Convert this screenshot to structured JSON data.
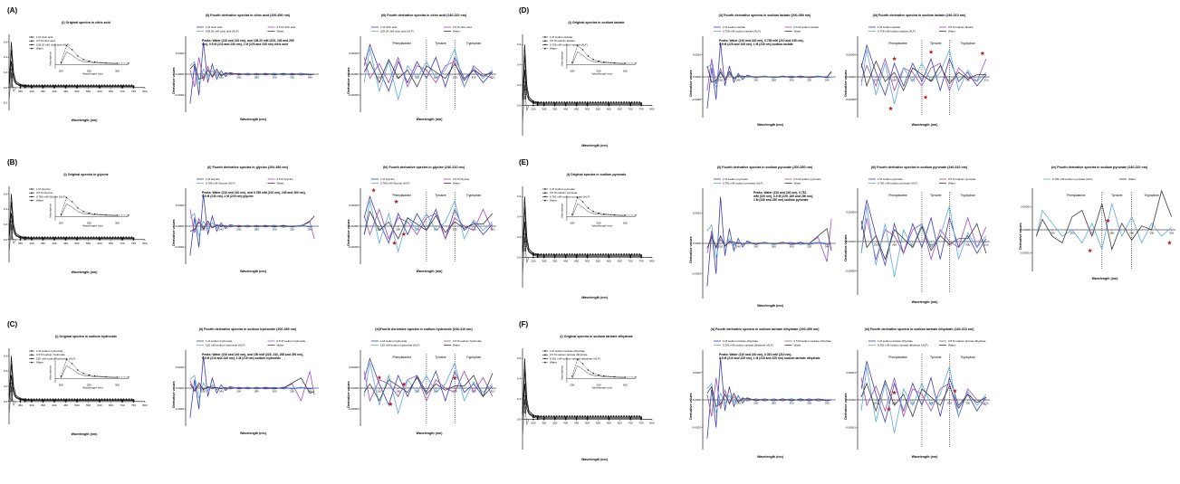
{
  "panels": [
    {
      "letter": "(A)",
      "solute": "citric acid",
      "legend": [
        "1 M citric acid",
        "0.5 M citric acid",
        "108.20 mM citric acid (ALF)",
        "Water"
      ],
      "s1_title": "(i) Original spectra in citric acid",
      "s2_title": "(ii) Fourth derivative spectra in citric acid  (200-350 nm)",
      "s3_title": "(iii) Fourth derivative spectra in citric acid  (240-310 nm)",
      "peaks": [
        "Peaks: Water (210 and 240 nm), and 108.20 mM (225, 245 and 295",
        "nm), 0.5 M (210 and 230 nm), 1 M (220 and 235 nm) citric acid"
      ],
      "stars": [],
      "has_s4": false
    },
    {
      "letter": "(B)",
      "solute": "glycine",
      "legend": [
        "1 M Glycine",
        "0.5 M Glycine",
        "0.785 mM Glycine (ALF)",
        "Water"
      ],
      "s1_title": "(i) Original spectra in glycine",
      "s2_title": "(ii) Fourth derivative spectra in glycine  (200-350 nm)",
      "s3_title": "(iii) Fourth derivative spectra in glycine  (240-310 nm)",
      "peaks": [
        "Peaks: Water (210 and 240 nm), and 0.785 mM (210 nm), 245 and 260 nm),",
        "0.5 M (230 nm), 1 M (220 nm) glycine"
      ],
      "stars": [
        [
          259,
          5.8e-05
        ],
        [
          247,
          8.5e-05
        ],
        [
          263,
          -1.9e-05
        ],
        [
          258,
          -4e-05
        ]
      ],
      "has_s4": false
    },
    {
      "letter": "(C)",
      "solute": "sodium hydroxide",
      "legend": [
        "1 M sodium hydroxide",
        "0.5 M sodium hydroxide",
        "150 mM sodium hydroxide (ALF)",
        "Water"
      ],
      "s1_title": "(i) Original spectra in sodium hydroxide",
      "s2_title": "(ii) Fourth derivative spectra in sodium hydroxide  (200-350 nm)",
      "s3_title": "(iii)Fourth derivative spectra in sodium hydroxide  (240-310 nm)",
      "peaks": [
        "Peaks: Water (210 and 240 nm), and 150 mM (225, 240, 265 and 290 nm),",
        "0.5 M (210 and 240 nm), 1 M (215 nm) sodium hydroxide"
      ],
      "stars": [
        [
          250,
          2.5e-05
        ],
        [
          263,
          9e-06
        ],
        [
          256,
          -3.8e-05
        ],
        [
          290,
          2.4e-05
        ]
      ],
      "has_s4": false
    },
    {
      "letter": "(D)",
      "solute": "sodium lactate",
      "legend": [
        "1 M sodium lactate",
        "0.5 M sodium lactate",
        "0.758 mM sodium lactate (ALF)",
        "Water"
      ],
      "s1_title": "(i) Original spectra in sodium lactate",
      "s2_title": "(ii) Fourth derivative spectra in sodium lactate  (200-350 nm)",
      "s3_title": "(iii) Fourth derivative spectra in sodium lactate  (240-310 nm)",
      "peaks": [
        "Peaks: Water (210 and 240 nm), 0.758 mM (210 and 245 nm),",
        "0.5 M (225 and 245 nm), 1 M (230 nm) sodium lactate"
      ],
      "stars": [
        [
          260,
          4e-05
        ],
        [
          258,
          -7e-05
        ],
        [
          280,
          5.5e-05
        ],
        [
          277,
          -4.5e-05
        ],
        [
          308,
          5.2e-05
        ]
      ],
      "has_s4": false
    },
    {
      "letter": "(E)",
      "solute": "sodium pyruvate",
      "legend": [
        "1 M sodium pyruvate",
        "0.5 M sodium pyruvate",
        "0.781 mM sodium pyruvate (ALF)",
        "Water"
      ],
      "s1_title": "(i) Original spectra in sodium pyruvate",
      "s2_title": "(ii) Fourth derivative spectra in sodium pyruvate  (200-350 nm)",
      "s3_title": "(iii) Fourth derivative spectra in sodium pyruvate  (240-310 nm)",
      "s4_title": "(iv) Fourth derivative spectra in sodium pyruvate  (240-310 nm)",
      "peaks": [
        "Peaks: Water (210 and 240 nm), 0.781",
        "mM (210 nm), 0.5 M (225, 240 and 250 nm),",
        "1 M (240 and 250 nm) sodium pyruvate"
      ],
      "stars": [],
      "s4_stars": [
        [
          278,
          7e-06
        ],
        [
          269,
          -1.6e-05
        ],
        [
          309,
          -1e-05
        ]
      ],
      "has_s4": true,
      "s4_legend": [
        "0.781 mM sodium pyruvate (ALF)",
        "Water"
      ]
    },
    {
      "letter": "(F)",
      "solute": "sodium tartrate dihydrate",
      "legend": [
        "1 M sodium tartrate dihydrate",
        "0.5 M sodium tartrate dihydrate",
        "0.391 mM sodium tartrate dihydrate (ALF)",
        "Water"
      ],
      "s1_title": "(i) Original spectra in sodium tartrate dihydrate",
      "s2_title": "(ii) Fourth derivative spectra in sodium tartrate dihydrate  (200-350 nm)",
      "s3_title": "(iii) Fourth derivative spectra in sodium tartrate dihydrate  (240-310 nm)",
      "peaks": [
        "Peaks: Water (210 and 240 nm), 0.391 mM (210 nm),",
        "0.5 M (210 and 225 nm), 1 M (215 and 225 nm) sodium tartrate dihydrate"
      ],
      "stars": [
        [
          260,
          1.3e-05
        ],
        [
          257,
          -1.7e-05
        ],
        [
          293,
          1.6e-05
        ]
      ],
      "has_s4": false
    }
  ],
  "labels": {
    "absorbance": "Absorbance",
    "wavelength_nm": "Wavelength (nm)",
    "derivative": "Derivative values",
    "wavelength_inset": "Wavelength (nm)",
    "absorbance_inset": "Absorbance",
    "regions": [
      "Phenylalanine",
      "Tyrosine",
      "Tryptophan"
    ]
  },
  "ticks": {
    "s1_x": [
      "250",
      "300",
      "350",
      "400",
      "450",
      "500",
      "550",
      "600",
      "650",
      "700",
      "750",
      "800"
    ],
    "s1_y": [
      "0.0",
      "0.2",
      "0.4",
      "0.6"
    ],
    "s1_y_neg": [
      "-0.2"
    ],
    "inset_x": [
      "200",
      "250",
      "300"
    ],
    "s2_x": [
      "220",
      "240",
      "260",
      "280",
      "300",
      "320",
      "340"
    ],
    "s2_y": [
      "0.0020",
      "0.0000",
      "-0.0020"
    ],
    "s2_y_alt": [
      "0.0002",
      "0.0000",
      "-0.0002"
    ],
    "s3_x": [
      "250",
      "260",
      "270",
      "280",
      "290",
      "300",
      "310"
    ],
    "s3_y": [
      "0.00005",
      "0.00000",
      "-0.00005"
    ],
    "s3_y_alt": [
      "0.00001",
      "0.00000",
      "-0.00001"
    ]
  },
  "chart_data": [
    {
      "type": "line",
      "panel": "A-E-F (i)",
      "x_range": [
        200,
        800
      ],
      "ylim": [
        -0.3,
        0.7
      ],
      "ylabel": "Absorbance",
      "xlabel": "Wavelength (nm)",
      "series": [
        {
          "name": "1 M",
          "x": [
            200,
            205,
            210,
            215,
            220,
            230,
            250,
            270,
            300,
            350,
            400,
            450,
            500,
            600,
            700,
            750
          ],
          "values": [
            0.05,
            0.3,
            0.6,
            0.4,
            0.2,
            0.08,
            0.04,
            0.03,
            0.02,
            0.02,
            0.02,
            0.02,
            0.02,
            0.02,
            0.02,
            0.02
          ]
        },
        {
          "name": "0.5 M",
          "x": [
            200,
            205,
            210,
            215,
            220,
            230,
            250,
            270,
            300,
            350,
            400,
            450,
            500,
            600,
            700,
            750
          ],
          "values": [
            0.1,
            0.25,
            0.5,
            0.3,
            0.15,
            0.06,
            0.03,
            0.02,
            0.02,
            0.02,
            0.02,
            0.02,
            0.02,
            0.02,
            0.02,
            0.02
          ]
        },
        {
          "name": "ALF",
          "x": [
            200,
            205,
            210,
            215,
            220,
            230,
            250,
            270,
            300,
            350,
            400,
            450,
            500,
            600,
            700,
            750
          ],
          "values": [
            0.0,
            0.15,
            0.35,
            0.2,
            0.1,
            0.05,
            0.02,
            0.01,
            0.01,
            0.01,
            0.01,
            0.01,
            0.01,
            0.01,
            0.01,
            0.01
          ]
        },
        {
          "name": "Water",
          "x": [
            200,
            205,
            210,
            215,
            220,
            230,
            250,
            270,
            300,
            350,
            400,
            450,
            500,
            600,
            700,
            750
          ],
          "values": [
            -0.2,
            0.0,
            0.2,
            0.05,
            -0.05,
            0.0,
            0.0,
            0.0,
            0.0,
            0.0,
            0.0,
            0.0,
            0.0,
            0.0,
            0.0,
            0.0
          ]
        }
      ]
    },
    {
      "type": "line",
      "panel": "(ii) 200-350 nm",
      "x_range": [
        200,
        350
      ],
      "ylabel": "Derivative values",
      "xlabel": "Wavelength (nm)",
      "x": [
        205,
        210,
        215,
        220,
        225,
        230,
        235,
        240,
        245,
        250,
        260,
        270,
        280,
        290,
        300,
        310,
        320,
        330,
        340,
        345
      ],
      "series": [
        {
          "name": "1 M",
          "values": [
            -0.0035,
            0.001,
            -0.0025,
            0.0038,
            -0.001,
            0.0012,
            -0.0006,
            0.0004,
            -0.0003,
            0.0002,
            -0.0001,
            0.0001,
            -0.0001,
            0.0001,
            -0.0001,
            0.0001,
            -0.0001,
            0.0001,
            -0.0001,
            0.0
          ]
        },
        {
          "name": "0.5 M",
          "values": [
            0.0005,
            -0.0015,
            0.002,
            -0.0008,
            0.0009,
            -0.0004,
            0.0003,
            -0.0002,
            0.0002,
            -0.0001,
            0.0001,
            -0.0001,
            0.0001,
            -0.0001,
            0.0001,
            -0.0001,
            0.0001,
            -0.0001,
            0.0,
            0.0
          ]
        },
        {
          "name": "ALF",
          "values": [
            0.001,
            0.0015,
            -0.0012,
            0.0006,
            -0.0003,
            0.0004,
            -0.0002,
            0.0003,
            -0.0001,
            0.0001,
            0.0,
            0.0001,
            -0.0001,
            0.0,
            0.0001,
            -0.0001,
            0.0,
            0.0001,
            0.0,
            0.0
          ]
        },
        {
          "name": "Water",
          "values": [
            0.0006,
            0.0012,
            -0.0006,
            -0.0004,
            0.0005,
            -0.0003,
            0.0006,
            -0.0002,
            0.0001,
            0.0001,
            0.0,
            0.0,
            0.0,
            0.0,
            0.0,
            0.0,
            0.0,
            0.0,
            0.0,
            0.0
          ]
        }
      ]
    },
    {
      "type": "line",
      "panel": "(iii) 240-310 nm",
      "x_range": [
        240,
        312
      ],
      "ylim": [
        -9e-05,
        9e-05
      ],
      "ylabel": "Derivative values",
      "xlabel": "Wavelength (nm)",
      "x": [
        242,
        245,
        250,
        255,
        260,
        265,
        270,
        275,
        280,
        285,
        290,
        295,
        300,
        305,
        310
      ],
      "series": [
        {
          "name": "1 M",
          "values": [
            2e-05,
            7e-05,
            1e-05,
            -4e-05,
            3e-05,
            -2e-05,
            3e-05,
            -1e-05,
            4e-05,
            -3e-05,
            4e-05,
            -1e-05,
            1e-05,
            -2e-05,
            5e-06
          ]
        },
        {
          "name": "0.5 M",
          "values": [
            4e-05,
            -1e-05,
            2.5e-05,
            -2e-05,
            4e-05,
            -3e-05,
            2e-05,
            1e-05,
            -2e-05,
            2e-05,
            3e-05,
            -3e-05,
            2e-05,
            0.0,
            -1e-05
          ]
        },
        {
          "name": "ALF",
          "values": [
            -2e-05,
            6e-05,
            -4e-05,
            3e-05,
            -6e-05,
            2e-05,
            -1e-05,
            3e-05,
            -1e-05,
            1e-05,
            6e-05,
            -3e-05,
            1.5e-05,
            -1e-05,
            1e-05
          ]
        },
        {
          "name": "Water",
          "values": [
            5e-06,
            3e-05,
            -2e-05,
            3.5e-05,
            -1e-05,
            1e-05,
            -3e-05,
            2e-05,
            5e-06,
            -1e-05,
            2.5e-05,
            -1.5e-05,
            1e-05,
            -5e-06,
            5e-06
          ]
        }
      ]
    },
    {
      "type": "line",
      "panel": "E (iv) 240-310 nm",
      "x_range": [
        240,
        312
      ],
      "ylim": [
        -3.2e-05,
        3.2e-05
      ],
      "ylabel": "Derivative values",
      "xlabel": "Wavelength (nm)",
      "x": [
        242,
        245,
        250,
        255,
        260,
        265,
        270,
        275,
        280,
        285,
        290,
        295,
        300,
        305,
        310
      ],
      "series": [
        {
          "name": "0.781 mM sodium pyruvate (ALF)",
          "values": [
            -5e-06,
            1.5e-05,
            5e-06,
            -5e-06,
            0.0,
            -1e-05,
            5e-06,
            -1.5e-05,
            2e-05,
            -5e-06,
            1e-05,
            -1e-05,
            5e-06,
            -5e-06,
            2e-06
          ]
        },
        {
          "name": "Water",
          "values": [
            0.0,
            3e-05,
            1e-05,
            -5e-06,
            8e-06,
            -5e-06,
            -1e-05,
            1e-05,
            1.5e-05,
            -5e-06,
            2e-05,
            -1.5e-05,
            5e-06,
            -8e-06,
            3e-06
          ]
        }
      ]
    }
  ],
  "colors": {
    "c1M": "#3b3fb0",
    "c05M": "#a04ab8",
    "cALF": "#5ea8df",
    "cWater": "#3c3c3c",
    "star": "#b71c1c",
    "s1_black": "#111111"
  }
}
